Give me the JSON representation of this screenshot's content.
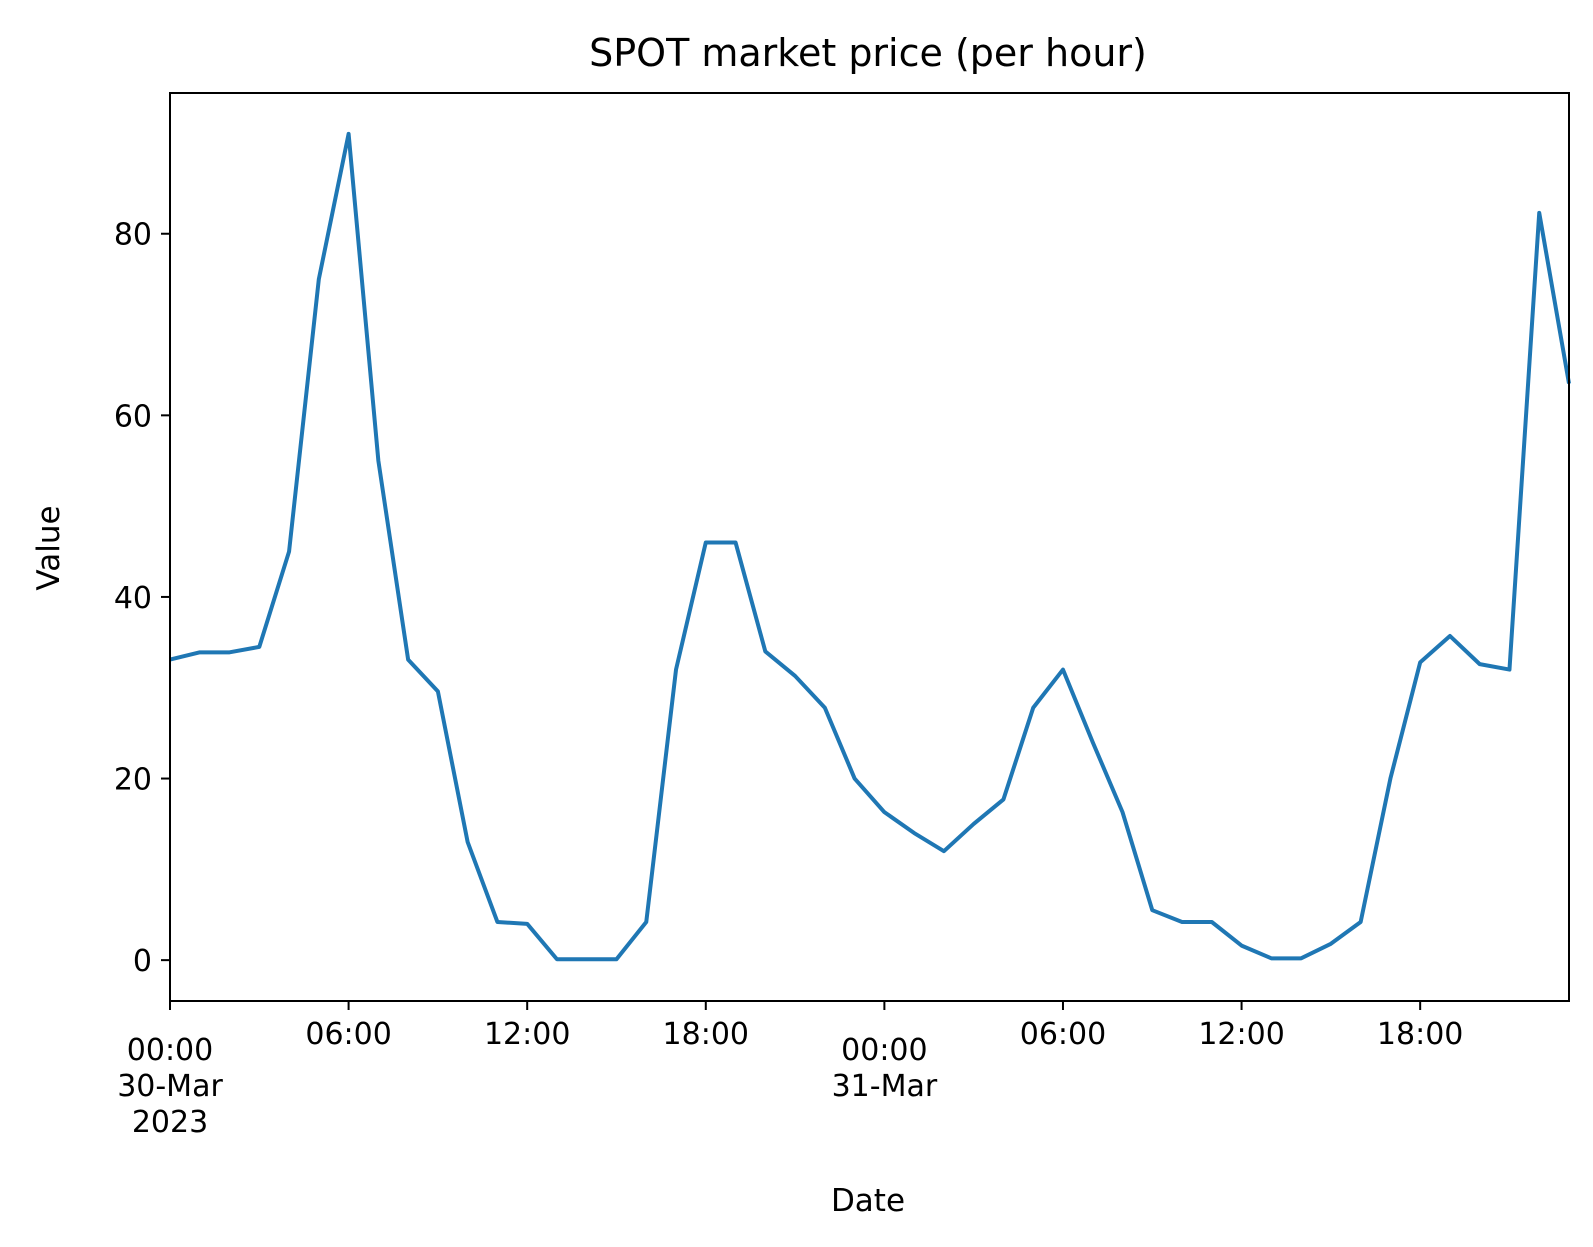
{
  "chart_data": {
    "type": "line",
    "title": "SPOT market price (per hour)",
    "xlabel": "Date",
    "ylabel": "Value",
    "grid": false,
    "legend": "none",
    "xlim": [
      "2023-03-30 00:00",
      "2023-03-31 23:00"
    ],
    "ylim": [
      -4.5,
      95.5
    ],
    "x_ticks": [
      {
        "at": "2023-03-30 00:00",
        "lines": [
          "00:00",
          "30-Mar",
          "2023"
        ]
      },
      {
        "at": "2023-03-30 06:00",
        "lines": [
          "06:00"
        ]
      },
      {
        "at": "2023-03-30 12:00",
        "lines": [
          "12:00"
        ]
      },
      {
        "at": "2023-03-30 18:00",
        "lines": [
          "18:00"
        ]
      },
      {
        "at": "2023-03-31 00:00",
        "lines": [
          "00:00",
          "31-Mar"
        ]
      },
      {
        "at": "2023-03-31 06:00",
        "lines": [
          "06:00"
        ]
      },
      {
        "at": "2023-03-31 12:00",
        "lines": [
          "12:00"
        ]
      },
      {
        "at": "2023-03-31 18:00",
        "lines": [
          "18:00"
        ]
      }
    ],
    "y_ticks": [
      0,
      20,
      40,
      60,
      80
    ],
    "series": [
      {
        "color": "#1f77b4",
        "x": [
          "2023-03-30 00:00",
          "2023-03-30 01:00",
          "2023-03-30 02:00",
          "2023-03-30 03:00",
          "2023-03-30 04:00",
          "2023-03-30 05:00",
          "2023-03-30 06:00",
          "2023-03-30 07:00",
          "2023-03-30 08:00",
          "2023-03-30 09:00",
          "2023-03-30 10:00",
          "2023-03-30 11:00",
          "2023-03-30 12:00",
          "2023-03-30 13:00",
          "2023-03-30 14:00",
          "2023-03-30 15:00",
          "2023-03-30 16:00",
          "2023-03-30 17:00",
          "2023-03-30 18:00",
          "2023-03-30 19:00",
          "2023-03-30 20:00",
          "2023-03-30 21:00",
          "2023-03-30 22:00",
          "2023-03-30 23:00",
          "2023-03-31 00:00",
          "2023-03-31 01:00",
          "2023-03-31 02:00",
          "2023-03-31 03:00",
          "2023-03-31 04:00",
          "2023-03-31 05:00",
          "2023-03-31 06:00",
          "2023-03-31 07:00",
          "2023-03-31 08:00",
          "2023-03-31 09:00",
          "2023-03-31 10:00",
          "2023-03-31 11:00",
          "2023-03-31 12:00",
          "2023-03-31 13:00",
          "2023-03-31 14:00",
          "2023-03-31 15:00",
          "2023-03-31 16:00",
          "2023-03-31 17:00",
          "2023-03-31 18:00",
          "2023-03-31 19:00",
          "2023-03-31 20:00",
          "2023-03-31 21:00",
          "2023-03-31 22:00",
          "2023-03-31 23:00"
        ],
        "values": [
          33.1,
          33.9,
          33.9,
          34.5,
          45.0,
          75.0,
          91.0,
          55.0,
          33.1,
          29.6,
          13.0,
          4.2,
          4.0,
          0.1,
          0.1,
          0.1,
          4.2,
          32.0,
          46.0,
          46.0,
          34.0,
          31.3,
          27.8,
          20.0,
          16.3,
          14.0,
          12.0,
          15.0,
          17.7,
          27.8,
          32.0,
          24.0,
          16.3,
          5.5,
          4.2,
          4.2,
          1.6,
          0.2,
          0.2,
          1.8,
          4.2,
          20.0,
          32.8,
          35.7,
          32.6,
          32.0,
          82.3,
          63.5
        ]
      }
    ]
  }
}
